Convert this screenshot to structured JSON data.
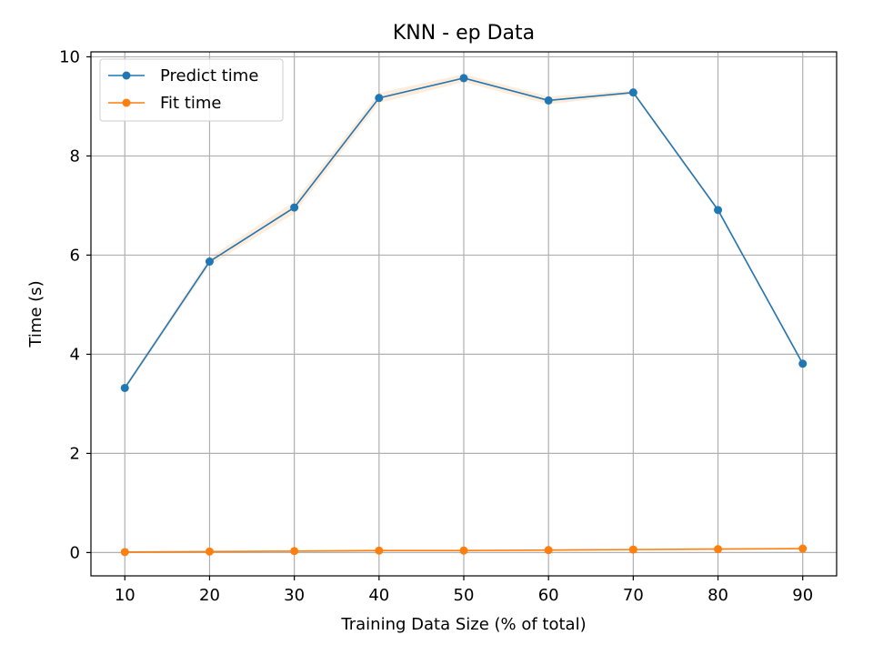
{
  "chart_data": {
    "type": "line",
    "title": "KNN - ep Data",
    "xlabel": "Training Data Size (% of total)",
    "ylabel": "Time (s)",
    "x": [
      10,
      20,
      30,
      40,
      50,
      60,
      70,
      80,
      90
    ],
    "xlim": [
      6,
      94
    ],
    "ylim": [
      -0.47,
      10.1
    ],
    "xticks": [
      10,
      20,
      30,
      40,
      50,
      60,
      70,
      80,
      90
    ],
    "yticks": [
      0,
      2,
      4,
      6,
      8,
      10
    ],
    "grid": true,
    "legend_position": "top-left",
    "series": [
      {
        "name": "Predict time",
        "color": "#1f77b4",
        "values": [
          3.32,
          5.87,
          6.96,
          9.17,
          9.57,
          9.12,
          9.28,
          6.91,
          3.81
        ],
        "band": [
          0.05,
          0.08,
          0.12,
          0.1,
          0.08,
          0.08,
          0.04,
          0.04,
          0.04
        ]
      },
      {
        "name": "Fit time",
        "color": "#ff7f0e",
        "values": [
          0.01,
          0.02,
          0.03,
          0.04,
          0.04,
          0.05,
          0.06,
          0.07,
          0.08
        ],
        "band": [
          0.01,
          0.01,
          0.01,
          0.01,
          0.01,
          0.01,
          0.01,
          0.01,
          0.01
        ]
      }
    ]
  }
}
